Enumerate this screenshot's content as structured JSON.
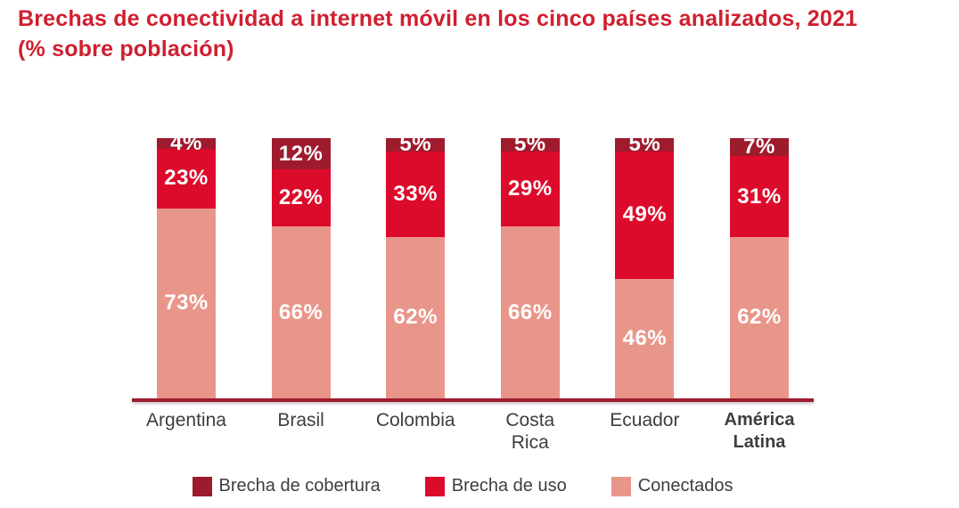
{
  "title": {
    "line1": "Brechas de conectividad a internet móvil en los cinco países analizados, 2021",
    "line2": "(% sobre población)"
  },
  "colors": {
    "title": "#cf1f2f",
    "coverage_gap": "#9e1b2e",
    "usage_gap": "#dd0b2b",
    "connected": "#e9968a",
    "axis_line": "#9e1b2e",
    "category_text": "#3e3e3e",
    "value_text": "#ffffff"
  },
  "chart_data": {
    "type": "bar",
    "stacked": true,
    "stack_total": 100,
    "title": "Brechas de conectividad a internet móvil en los cinco países analizados, 2021 (% sobre población)",
    "categories": [
      "Argentina",
      "Brasil",
      "Colombia",
      "Costa Rica",
      "Ecuador",
      "América\nLatina"
    ],
    "emphasis_category_index": 5,
    "series": [
      {
        "name": "Brecha de cobertura",
        "color_key": "coverage_gap",
        "values": [
          4,
          12,
          5,
          5,
          5,
          7
        ]
      },
      {
        "name": "Brecha de uso",
        "color_key": "usage_gap",
        "values": [
          23,
          22,
          33,
          29,
          49,
          31
        ]
      },
      {
        "name": "Conectados",
        "color_key": "connected",
        "values": [
          73,
          66,
          62,
          66,
          46,
          62
        ]
      }
    ],
    "value_suffix": "%",
    "ylim": [
      0,
      100
    ],
    "grid": false,
    "legend_position": "bottom"
  },
  "legend": {
    "items": [
      {
        "label": "Brecha de cobertura",
        "color_key": "coverage_gap"
      },
      {
        "label": "Brecha de uso",
        "color_key": "usage_gap"
      },
      {
        "label": "Conectados",
        "color_key": "connected"
      }
    ]
  }
}
